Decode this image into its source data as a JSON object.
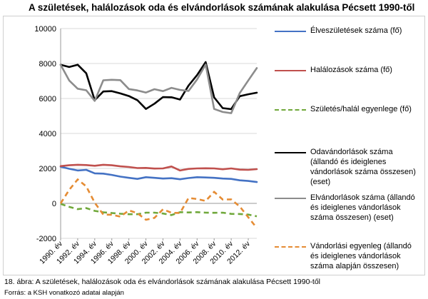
{
  "page": {
    "title": "A születések, halálozások oda és elvándorlások számának alakulása Pécsett 1990-től",
    "caption": "18. ábra: A születések, halálozások oda és elvándorlások számának alakulása Pécsett 1990-től",
    "source": "Forrás: a KSH vonatkozó adatai alapján"
  },
  "chart_data": {
    "type": "line",
    "title": "A születések, halálozások oda és elvándorlások számának alakulása Pécsett 1990-től",
    "xlabel": "",
    "ylabel": "",
    "ylim": [
      -2000,
      10000
    ],
    "yticks": [
      "10000",
      "8000",
      "6000",
      "4000",
      "2000",
      "0",
      "-2000"
    ],
    "grid": true,
    "legend_position": "right",
    "x": [
      1990,
      1991,
      1992,
      1993,
      1994,
      1995,
      1996,
      1997,
      1998,
      1999,
      2000,
      2001,
      2002,
      2003,
      2004,
      2005,
      2006,
      2007,
      2008,
      2009,
      2010,
      2011,
      2012,
      2013
    ],
    "xtick_labels": [
      "1990. év",
      "1992. év",
      "1994. év",
      "1996. év",
      "1998. év",
      "2000. év",
      "2002. év",
      "2004. év",
      "2006. év",
      "2008. év",
      "2010. év",
      "2012. év"
    ],
    "series": [
      {
        "name": "Élveszületések száma (fő)",
        "color": "#4472c4",
        "dash": "solid",
        "values": [
          2100,
          1980,
          1880,
          1920,
          1720,
          1700,
          1630,
          1530,
          1460,
          1400,
          1500,
          1460,
          1420,
          1440,
          1380,
          1450,
          1500,
          1480,
          1460,
          1420,
          1400,
          1320,
          1280,
          1220
        ]
      },
      {
        "name": "Halálozások száma (fő)",
        "color": "#c0504d",
        "dash": "solid",
        "values": [
          2130,
          2180,
          2210,
          2190,
          2150,
          2210,
          2180,
          2120,
          2080,
          2020,
          2030,
          1990,
          2000,
          2110,
          1880,
          1970,
          2000,
          2010,
          2000,
          1950,
          2000,
          1930,
          1920,
          1960
        ]
      },
      {
        "name": "Születés/halál egyenlege (fő)",
        "color": "#70a83b",
        "dash": "dashed",
        "values": [
          -30,
          -200,
          -330,
          -270,
          -430,
          -510,
          -550,
          -590,
          -620,
          -620,
          -530,
          -530,
          -580,
          -670,
          -500,
          -520,
          -500,
          -530,
          -540,
          -530,
          -600,
          -610,
          -640,
          -740
        ]
      },
      {
        "name": "Odavándorlások száma (állandó és ideiglenes vándorlások száma összesen) (eset)",
        "color": "#000000",
        "dash": "solid",
        "values": [
          7930,
          7800,
          7930,
          7440,
          5900,
          6400,
          6420,
          6290,
          6140,
          5900,
          5400,
          5700,
          6080,
          6070,
          5940,
          6740,
          7340,
          8080,
          6060,
          5450,
          5390,
          6130,
          6240,
          6330
        ]
      },
      {
        "name": "Elvándorlások száma (állandó és ideiglenes vándorlások száma összesen) (eset)",
        "color": "#8c8c8c",
        "dash": "solid",
        "values": [
          7930,
          7030,
          6560,
          6470,
          5860,
          7040,
          7070,
          7050,
          6540,
          6460,
          6340,
          6530,
          6420,
          6610,
          6490,
          6430,
          7090,
          7940,
          5400,
          5230,
          5160,
          6310,
          7030,
          7740
        ]
      },
      {
        "name": "Vándorlási egyenleg (állandó és ideiglenes vándorlások száma alapján összesen)",
        "color": "#e58c34",
        "dash": "dashed",
        "values": [
          0,
          770,
          1370,
          970,
          40,
          -640,
          -650,
          -760,
          -400,
          -560,
          -940,
          -830,
          -340,
          -540,
          -550,
          310,
          250,
          140,
          660,
          220,
          230,
          -180,
          -790,
          -1410
        ]
      }
    ]
  }
}
